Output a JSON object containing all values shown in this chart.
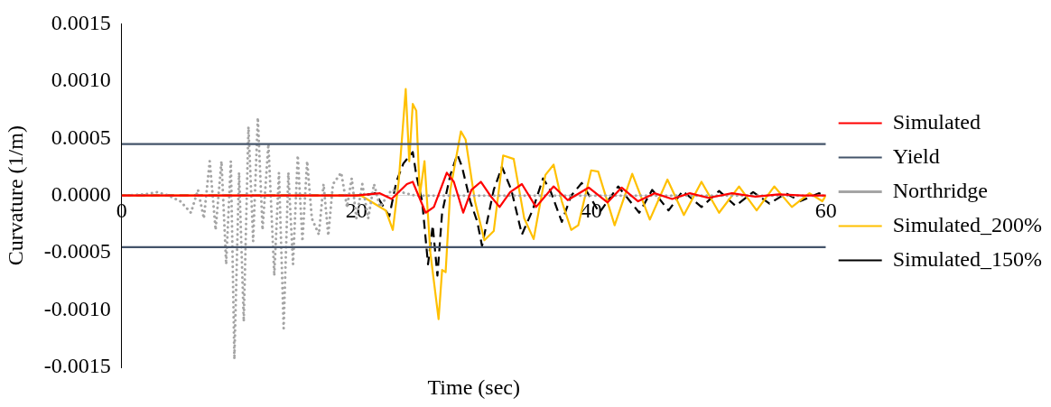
{
  "chart_data": {
    "type": "line",
    "xlabel": "Time (sec)",
    "ylabel": "Curvature (1/m)",
    "xlim": [
      0,
      60
    ],
    "xticks": [
      0,
      20,
      40,
      60
    ],
    "ylim": [
      -0.0015,
      0.0015
    ],
    "yticks": [
      0.0015,
      {
        "value": 0.001,
        "label": "0.0010"
      },
      0.0005,
      {
        "value": 0,
        "label": "0.0000"
      },
      -0.0005,
      {
        "value": -0.001,
        "label": "-0.0010"
      },
      -0.0015
    ],
    "legend": "right",
    "marker": "none",
    "series": [
      {
        "name": "Simulated",
        "color": "#ff0000",
        "line_style": "solid",
        "x": [
          0,
          20,
          22,
          23,
          24.3,
          24.8,
          25.9,
          26.6,
          27.7,
          28.3,
          29.1,
          29.8,
          30.6,
          31.4,
          32.2,
          33.1,
          34.1,
          35.3,
          36.8,
          38.0,
          39.8,
          41.4,
          42.6,
          44.0,
          45.4,
          46.9,
          48.4,
          50,
          52,
          54,
          56,
          58,
          60
        ],
        "values": [
          0,
          0,
          2e-05,
          -3e-05,
          0.0001,
          0.00012,
          -0.00015,
          -0.0001,
          0.0002,
          0.00012,
          -0.00015,
          5e-05,
          0.00012,
          0,
          -0.0001,
          3e-05,
          0.0001,
          -0.0001,
          8e-05,
          -4e-05,
          7e-05,
          -6e-05,
          7e-05,
          -5e-05,
          2e-05,
          -3e-05,
          2e-05,
          -2e-05,
          2e-05,
          -1e-05,
          1e-05,
          0,
          0
        ]
      },
      {
        "name": "Yield",
        "color": "#44546a",
        "line_style": "solid",
        "x": [
          0,
          60
        ],
        "values": [
          0.00045,
          0.00045
        ]
      },
      {
        "color": "#44546a",
        "line_style": "solid",
        "x": [
          0,
          60
        ],
        "values": [
          -0.00045,
          -0.00045
        ]
      },
      {
        "name": "Northridge",
        "color": "#a5a5a5",
        "line_style": "dotted",
        "x": [
          0,
          2,
          3,
          4,
          5,
          5.9,
          6.5,
          7.0,
          7.5,
          8.0,
          8.5,
          8.9,
          9.3,
          9.6,
          10.0,
          10.4,
          10.8,
          11.2,
          11.6,
          12.0,
          12.5,
          13.0,
          13.4,
          13.8,
          14.2,
          14.6,
          15.0,
          15.4,
          15.8,
          16.2,
          16.8,
          17.2,
          17.6,
          18.0,
          18.7,
          19.2,
          19.6,
          20.0,
          20.5,
          21,
          21.5,
          22,
          23,
          25,
          60
        ],
        "values": [
          0,
          1e-05,
          3e-05,
          0,
          -5e-05,
          -0.00015,
          5e-05,
          -0.0002,
          0.0003,
          -0.0003,
          0.0003,
          -0.0006,
          0.0003,
          -0.00143,
          0.0002,
          -0.0011,
          0.0006,
          -0.0004,
          0.00068,
          -0.0003,
          0.00045,
          -0.0007,
          0.0002,
          -0.00116,
          0.0002,
          -0.0006,
          0.00035,
          -0.0004,
          0.0003,
          -0.0002,
          -0.00034,
          0.0001,
          -0.00035,
          0.0001,
          0.0002,
          -0.0001,
          0.00015,
          -0.0002,
          0.0001,
          -0.0002,
          0.0001,
          -0.0001,
          5e-05,
          0,
          0
        ]
      },
      {
        "name": "Simulated_200%",
        "color": "#ffc000",
        "line_style": "solid",
        "x": [
          0,
          20.4,
          22.5,
          23.1,
          23.6,
          24.2,
          24.5,
          24.8,
          25.1,
          25.4,
          25.8,
          26.3,
          27.0,
          27.3,
          27.6,
          28.0,
          28.9,
          29.3,
          30.1,
          30.9,
          31.7,
          32.5,
          33.4,
          34.3,
          35.1,
          36.1,
          36.8,
          37.5,
          38.3,
          38.9,
          40.0,
          40.6,
          42.0,
          43.5,
          45.0,
          46.5,
          47.9,
          49.4,
          50.9,
          52.6,
          54.1,
          55.6,
          57.1,
          58.6,
          59.7,
          60
        ],
        "values": [
          0,
          0,
          -0.00013,
          -0.0003,
          0.00012,
          0.00093,
          0.0003,
          0.0008,
          0.00074,
          0,
          0.0003,
          -0.0005,
          -0.00108,
          -0.00065,
          -0.00067,
          5e-05,
          0.00056,
          0.00049,
          -5e-05,
          -0.00039,
          -0.00031,
          0.00035,
          0.00032,
          -0.0002,
          -0.00038,
          0.00018,
          0.00027,
          -5e-05,
          -0.0003,
          -0.00026,
          0.00022,
          0.00021,
          -0.00026,
          0.00019,
          -0.00021,
          0.00014,
          -0.00017,
          0.00012,
          -0.00015,
          8e-05,
          -0.00013,
          8e-05,
          -0.0001,
          2e-05,
          -5e-05,
          0
        ]
      },
      {
        "name": "Simulated_150%",
        "color": "#000000",
        "line_style": "dashed",
        "x": [
          0,
          20.4,
          21.6,
          22.8,
          23.4,
          24.0,
          24.8,
          25.1,
          25.6,
          26.1,
          26.5,
          26.9,
          27.3,
          28.0,
          28.6,
          29.0,
          29.7,
          30.3,
          30.7,
          31.7,
          32.4,
          33.2,
          34.1,
          35.0,
          35.9,
          36.5,
          37.5,
          38.3,
          39.2,
          40.7,
          42.3,
          44.1,
          45.2,
          46.6,
          47.8,
          49.4,
          50.9,
          52.3,
          53.8,
          55.2,
          56.6,
          57.8,
          59.4,
          60
        ],
        "values": [
          0,
          0,
          2e-05,
          -0.00018,
          0.00012,
          0.00028,
          0.00038,
          0.00018,
          -5e-05,
          -0.0006,
          -0.00026,
          -0.0007,
          -0.00015,
          0.00018,
          0.00036,
          0.00025,
          -5e-05,
          -0.00023,
          -0.00044,
          5e-05,
          0.00025,
          5e-05,
          -0.00034,
          -0.00013,
          0.00015,
          5e-05,
          -0.00023,
          0,
          0.00011,
          -0.00015,
          8e-05,
          -0.00015,
          5e-05,
          -0.00013,
          4e-05,
          -0.0001,
          4e-05,
          -9e-05,
          3e-05,
          -7e-05,
          2e-05,
          -5e-05,
          2e-05,
          0
        ]
      }
    ]
  }
}
